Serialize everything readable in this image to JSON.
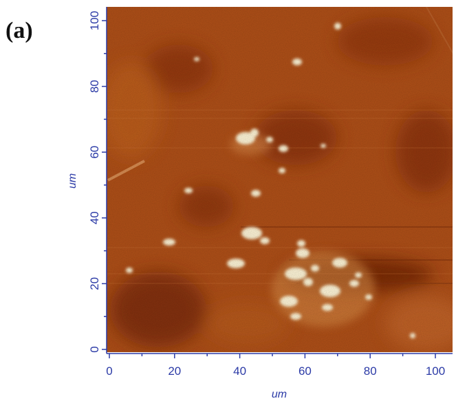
{
  "panel_label": "(a)",
  "image": {
    "x_axis": {
      "label": "um",
      "range": [
        0,
        100
      ],
      "ticks": [
        "0",
        "20",
        "40",
        "60",
        "80",
        "100"
      ]
    },
    "y_axis": {
      "label": "um",
      "range": [
        0,
        100
      ],
      "ticks": [
        "0",
        "20",
        "40",
        "60",
        "80",
        "100"
      ]
    },
    "colormap": {
      "low": "#5a1e05",
      "mid": "#b6561c",
      "high": "#fff6d8"
    },
    "axis_color": "#2b3aa6"
  }
}
